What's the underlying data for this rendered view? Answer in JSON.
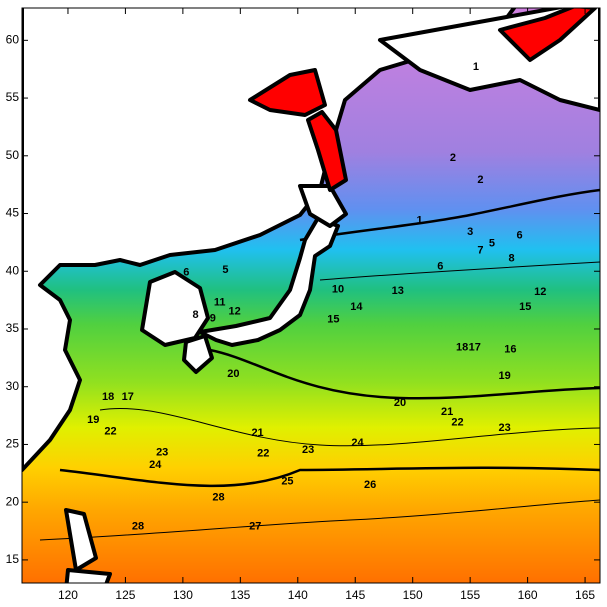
{
  "map": {
    "xlim": [
      116.0,
      166.3
    ],
    "ylim": [
      13.0,
      62.8
    ],
    "xticks": [
      120,
      125,
      130,
      135,
      140,
      145,
      150,
      155,
      160,
      165
    ],
    "yticks": [
      15,
      20,
      25,
      30,
      35,
      40,
      45,
      50,
      55,
      60
    ],
    "contour_labels": [
      {
        "value": 1,
        "lon": 155.5,
        "lat": 57.7
      },
      {
        "value": 2,
        "lon": 153.5,
        "lat": 49.8
      },
      {
        "value": 2,
        "lon": 155.9,
        "lat": 47.9
      },
      {
        "value": 1,
        "lon": 150.6,
        "lat": 44.4
      },
      {
        "value": 3,
        "lon": 155.0,
        "lat": 43.4
      },
      {
        "value": 5,
        "lon": 156.9,
        "lat": 42.4
      },
      {
        "value": 6,
        "lon": 159.3,
        "lat": 43.1
      },
      {
        "value": 7,
        "lon": 155.9,
        "lat": 41.8
      },
      {
        "value": 8,
        "lon": 158.6,
        "lat": 41.1
      },
      {
        "value": 6,
        "lon": 152.4,
        "lat": 40.4
      },
      {
        "value": 13,
        "lon": 148.7,
        "lat": 38.3
      },
      {
        "value": 10,
        "lon": 143.5,
        "lat": 38.4
      },
      {
        "value": 14,
        "lon": 145.1,
        "lat": 36.9
      },
      {
        "value": 15,
        "lon": 143.1,
        "lat": 35.8
      },
      {
        "value": 12,
        "lon": 161.1,
        "lat": 38.2
      },
      {
        "value": 15,
        "lon": 159.8,
        "lat": 36.9
      },
      {
        "value": 16,
        "lon": 158.5,
        "lat": 33.2
      },
      {
        "value": 17,
        "lon": 155.4,
        "lat": 33.4
      },
      {
        "value": 18,
        "lon": 154.3,
        "lat": 33.4
      },
      {
        "value": 19,
        "lon": 158.0,
        "lat": 30.9
      },
      {
        "value": 20,
        "lon": 148.9,
        "lat": 28.6
      },
      {
        "value": 21,
        "lon": 153.0,
        "lat": 27.8
      },
      {
        "value": 22,
        "lon": 153.9,
        "lat": 26.9
      },
      {
        "value": 23,
        "lon": 158.0,
        "lat": 26.4
      },
      {
        "value": 24,
        "lon": 145.2,
        "lat": 25.1
      },
      {
        "value": 21,
        "lon": 136.5,
        "lat": 26.0
      },
      {
        "value": 22,
        "lon": 137.0,
        "lat": 24.2
      },
      {
        "value": 23,
        "lon": 140.9,
        "lat": 24.5
      },
      {
        "value": 23,
        "lon": 128.2,
        "lat": 24.3
      },
      {
        "value": 24,
        "lon": 127.6,
        "lat": 23.2
      },
      {
        "value": 25,
        "lon": 139.1,
        "lat": 21.8
      },
      {
        "value": 26,
        "lon": 146.3,
        "lat": 21.5
      },
      {
        "value": 28,
        "lon": 133.1,
        "lat": 20.4
      },
      {
        "value": 27,
        "lon": 136.3,
        "lat": 17.9
      },
      {
        "value": 28,
        "lon": 126.1,
        "lat": 17.9
      },
      {
        "value": 20,
        "lon": 134.4,
        "lat": 31.1
      },
      {
        "value": 8,
        "lon": 131.1,
        "lat": 36.2
      },
      {
        "value": 9,
        "lon": 132.6,
        "lat": 35.9
      },
      {
        "value": 11,
        "lon": 133.2,
        "lat": 37.3
      },
      {
        "value": 12,
        "lon": 134.5,
        "lat": 36.5
      },
      {
        "value": 6,
        "lon": 130.3,
        "lat": 39.9
      },
      {
        "value": 5,
        "lon": 133.7,
        "lat": 40.1
      },
      {
        "value": 17,
        "lon": 125.2,
        "lat": 29.1
      },
      {
        "value": 18,
        "lon": 123.5,
        "lat": 29.1
      },
      {
        "value": 19,
        "lon": 122.2,
        "lat": 27.1
      },
      {
        "value": 22,
        "lon": 123.7,
        "lat": 26.1
      }
    ]
  }
}
